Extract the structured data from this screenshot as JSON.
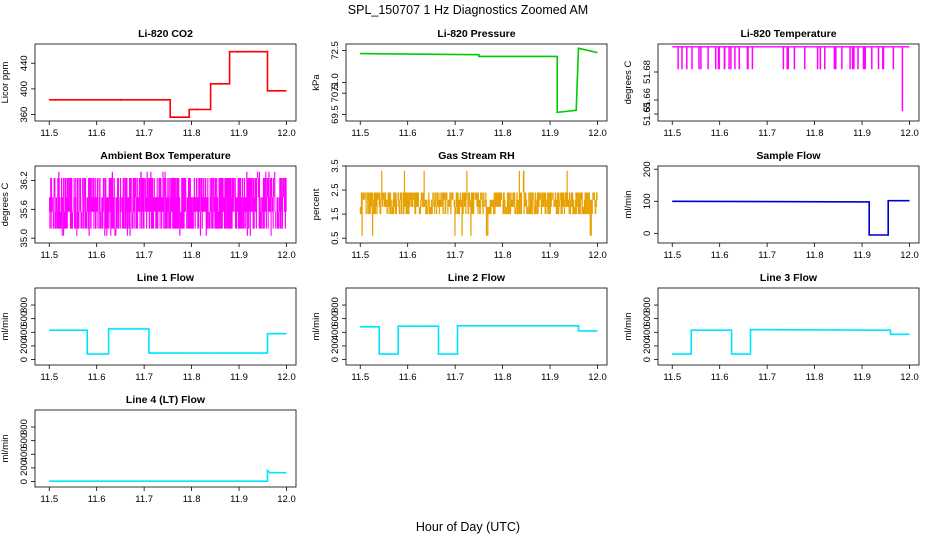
{
  "figure": {
    "title": "SPL_150707  1 Hz Diagnostics Zoomed AM",
    "xlabel": "Hour of Day (UTC)"
  },
  "chart_data": [
    {
      "type": "line",
      "title": "Li-820 CO2",
      "ylabel": "Licor ppm",
      "color": "#ff0000",
      "xlim": [
        11.47,
        12.02
      ],
      "ylim": [
        350,
        470
      ],
      "xticks": [
        11.5,
        11.6,
        11.7,
        11.8,
        11.9,
        12.0
      ],
      "yticks": [
        360,
        400,
        440
      ],
      "ytick_labels": [
        "360",
        "400",
        "440"
      ],
      "points": [
        [
          11.5,
          383
        ],
        [
          11.755,
          383
        ],
        [
          11.755,
          356
        ],
        [
          11.795,
          356
        ],
        [
          11.795,
          368
        ],
        [
          11.84,
          368
        ],
        [
          11.84,
          408
        ],
        [
          11.88,
          408
        ],
        [
          11.88,
          458
        ],
        [
          11.96,
          458
        ],
        [
          11.96,
          397
        ],
        [
          12.0,
          397
        ]
      ],
      "noise": 1.5
    },
    {
      "type": "line",
      "title": "Li-820 Pressure",
      "ylabel": "kPa",
      "color": "#00cc00",
      "xlim": [
        11.47,
        12.02
      ],
      "ylim": [
        69.2,
        72.8
      ],
      "xticks": [
        11.5,
        11.6,
        11.7,
        11.8,
        11.9,
        12.0
      ],
      "yticks": [
        69.5,
        70.5,
        71.0,
        72.5
      ],
      "ytick_labels": [
        "69.5",
        "70.5",
        "71.0",
        "72.5"
      ],
      "points": [
        [
          11.5,
          72.35
        ],
        [
          11.75,
          72.3
        ],
        [
          11.75,
          72.22
        ],
        [
          11.915,
          72.22
        ],
        [
          11.915,
          69.6
        ],
        [
          11.955,
          69.7
        ],
        [
          11.96,
          72.6
        ],
        [
          12.0,
          72.4
        ]
      ],
      "noise": 0.02
    },
    {
      "type": "spikes",
      "title": "Li-820 Temperature",
      "ylabel": "degrees C",
      "color": "#ff00ff",
      "xlim": [
        11.47,
        12.02
      ],
      "ylim": [
        51.645,
        51.7
      ],
      "xticks": [
        11.5,
        11.6,
        11.7,
        11.8,
        11.9,
        12.0
      ],
      "yticks": [
        51.65,
        51.66,
        51.68
      ],
      "ytick_labels": [
        "51.65",
        "51.66",
        "51.68"
      ],
      "base": 51.698,
      "low": 51.682,
      "n_spikes": 42,
      "deep_spike": [
        11.985,
        51.652
      ]
    },
    {
      "type": "band",
      "title": "Ambient Box Temperature",
      "ylabel": "degrees C",
      "color": "#ff00ff",
      "xlim": [
        11.47,
        12.02
      ],
      "ylim": [
        34.9,
        36.5
      ],
      "xticks": [
        11.5,
        11.6,
        11.7,
        11.8,
        11.9,
        12.0
      ],
      "yticks": [
        35.0,
        35.6,
        36.2
      ],
      "ytick_labels": [
        "35.0",
        "35.6",
        "36.2"
      ],
      "levels": [
        35.2,
        35.55,
        35.85,
        36.25
      ],
      "extreme": [
        35.05,
        36.38
      ],
      "density": 900
    },
    {
      "type": "band",
      "title": "Gas Stream RH",
      "ylabel": "percent",
      "color": "#e6a000",
      "xlim": [
        11.47,
        12.02
      ],
      "ylim": [
        0.3,
        3.5
      ],
      "xticks": [
        11.5,
        11.6,
        11.7,
        11.8,
        11.9,
        12.0
      ],
      "yticks": [
        0.5,
        1.5,
        2.5,
        3.5
      ],
      "ytick_labels": [
        "0.5",
        "1.5",
        "2.5",
        "3.5"
      ],
      "levels": [
        1.5,
        1.8,
        2.1,
        2.4
      ],
      "extreme": [
        0.6,
        3.3
      ],
      "density": 700
    },
    {
      "type": "line",
      "title": "Sample Flow",
      "ylabel": "ml/min",
      "color": "#0000cc",
      "xlim": [
        11.47,
        12.02
      ],
      "ylim": [
        -30,
        210
      ],
      "xticks": [
        11.5,
        11.6,
        11.7,
        11.8,
        11.9,
        12.0
      ],
      "yticks": [
        0,
        100,
        200
      ],
      "ytick_labels": [
        "0",
        "100",
        "200"
      ],
      "points": [
        [
          11.5,
          100
        ],
        [
          11.915,
          98
        ],
        [
          11.915,
          -5
        ],
        [
          11.955,
          -5
        ],
        [
          11.955,
          102
        ],
        [
          12.0,
          102
        ]
      ],
      "noise": 2
    },
    {
      "type": "line",
      "title": "Line 1 Flow",
      "ylabel": "ml/min",
      "color": "#00e5ff",
      "xlim": [
        11.47,
        12.02
      ],
      "ylim": [
        -80,
        1050
      ],
      "xticks": [
        11.5,
        11.6,
        11.7,
        11.8,
        11.9,
        12.0
      ],
      "yticks": [
        0,
        200,
        400,
        600,
        800
      ],
      "ytick_labels": [
        "0",
        "200",
        "400",
        "600",
        "800"
      ],
      "points": [
        [
          11.5,
          430
        ],
        [
          11.58,
          430
        ],
        [
          11.58,
          80
        ],
        [
          11.625,
          80
        ],
        [
          11.625,
          450
        ],
        [
          11.71,
          450
        ],
        [
          11.71,
          95
        ],
        [
          11.96,
          95
        ],
        [
          11.96,
          380
        ],
        [
          12.0,
          380
        ]
      ],
      "noise": 12
    },
    {
      "type": "line",
      "title": "Line 2 Flow",
      "ylabel": "ml/min",
      "color": "#00e5ff",
      "xlim": [
        11.47,
        12.02
      ],
      "ylim": [
        -80,
        1050
      ],
      "xticks": [
        11.5,
        11.6,
        11.7,
        11.8,
        11.9,
        12.0
      ],
      "yticks": [
        0,
        200,
        400,
        600,
        800
      ],
      "ytick_labels": [
        "0",
        "200",
        "400",
        "600",
        "800"
      ],
      "points": [
        [
          11.5,
          480
        ],
        [
          11.54,
          480
        ],
        [
          11.54,
          80
        ],
        [
          11.58,
          80
        ],
        [
          11.58,
          490
        ],
        [
          11.665,
          490
        ],
        [
          11.665,
          80
        ],
        [
          11.705,
          80
        ],
        [
          11.705,
          495
        ],
        [
          11.96,
          495
        ],
        [
          11.96,
          420
        ],
        [
          12.0,
          420
        ]
      ],
      "noise": 12
    },
    {
      "type": "line",
      "title": "Line 3 Flow",
      "ylabel": "ml/min",
      "color": "#00e5ff",
      "xlim": [
        11.47,
        12.02
      ],
      "ylim": [
        -80,
        1050
      ],
      "xticks": [
        11.5,
        11.6,
        11.7,
        11.8,
        11.9,
        12.0
      ],
      "yticks": [
        0,
        200,
        400,
        600,
        800
      ],
      "ytick_labels": [
        "0",
        "200",
        "400",
        "600",
        "800"
      ],
      "points": [
        [
          11.5,
          80
        ],
        [
          11.54,
          80
        ],
        [
          11.54,
          430
        ],
        [
          11.625,
          430
        ],
        [
          11.625,
          80
        ],
        [
          11.665,
          80
        ],
        [
          11.665,
          440
        ],
        [
          11.96,
          430
        ],
        [
          11.96,
          370
        ],
        [
          12.0,
          370
        ]
      ],
      "noise": 10
    },
    {
      "type": "line",
      "title": "Line 4 (LT) Flow",
      "ylabel": "ml/min",
      "color": "#00e5ff",
      "xlim": [
        11.47,
        12.02
      ],
      "ylim": [
        -80,
        1050
      ],
      "xticks": [
        11.5,
        11.6,
        11.7,
        11.8,
        11.9,
        12.0
      ],
      "yticks": [
        0,
        200,
        400,
        600,
        800
      ],
      "ytick_labels": [
        "0",
        "200",
        "400",
        "600",
        "800"
      ],
      "points": [
        [
          11.5,
          5
        ],
        [
          11.96,
          5
        ],
        [
          11.96,
          160
        ],
        [
          11.965,
          130
        ],
        [
          12.0,
          130
        ]
      ],
      "noise": 3
    }
  ]
}
